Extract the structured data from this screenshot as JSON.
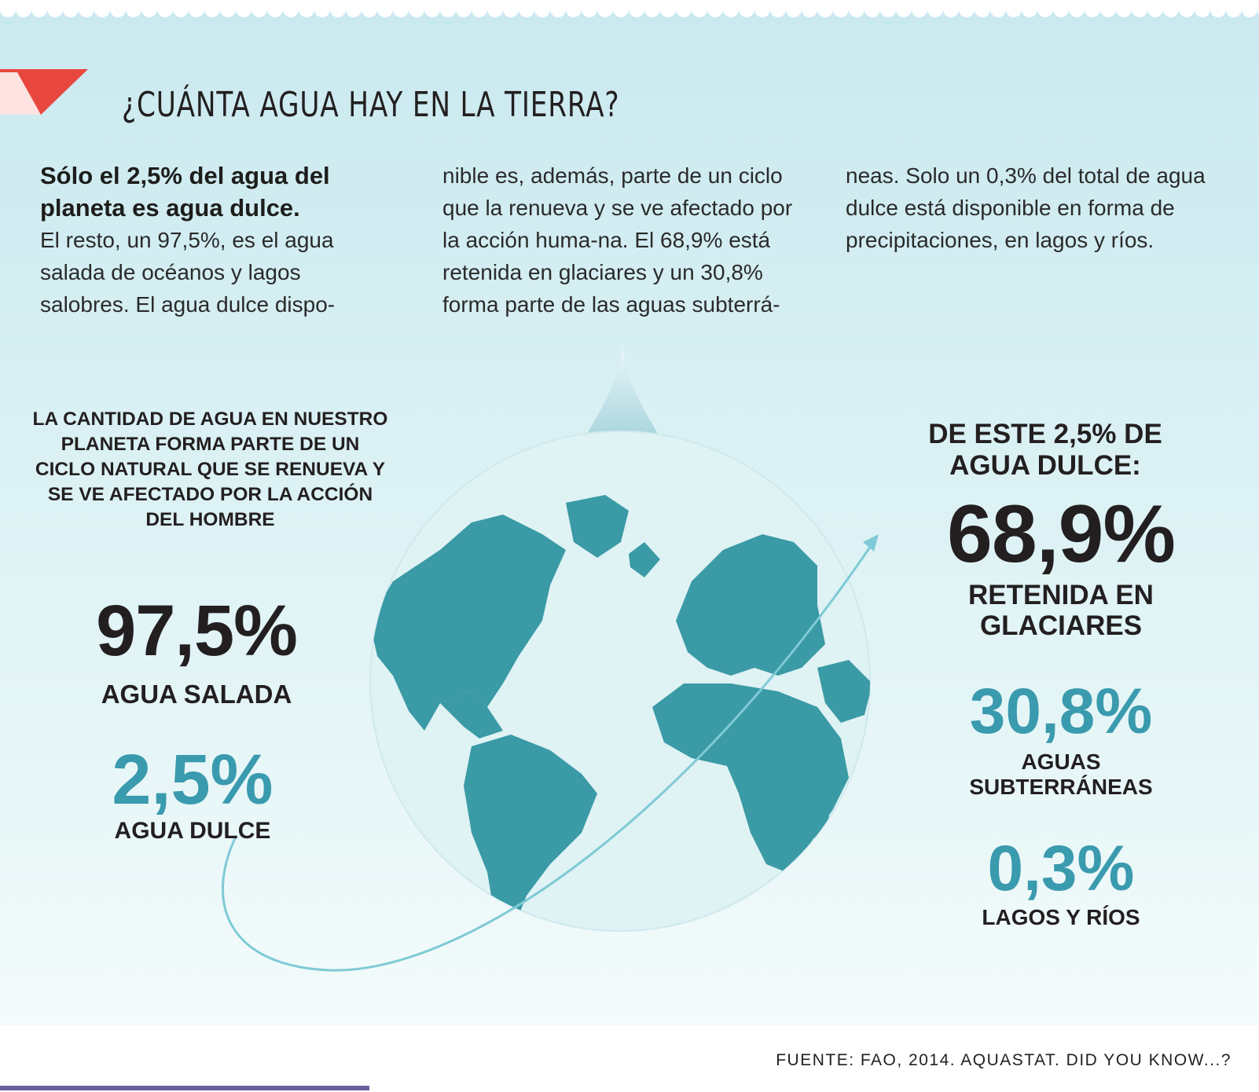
{
  "title": "¿CUÁNTA AGUA HAY EN LA TIERRA?",
  "intro": {
    "lead": "Sólo el 2,5% del agua del planeta es agua dulce.",
    "col1_text": "El resto, un 97,5%, es el agua salada de océanos y lagos salobres. El agua dulce dispo-",
    "col2_text": "nible es, además, parte de un ciclo que la renueva y se ve afectado por la acción huma-na. El 68,9% está retenida en glaciares y un 30,8% forma parte de las aguas subterrá-",
    "col3_text": "neas. Solo un 0,3% del total de agua dulce está disponible en forma de precipitaciones, en lagos y ríos."
  },
  "left": {
    "caption": "LA CANTIDAD DE AGUA EN NUESTRO PLANETA FORMA PARTE DE UN CICLO NATURAL QUE SE RENUEVA Y SE VE AFECTADO POR LA ACCIÓN DEL HOMBRE",
    "salt_value": "97,5%",
    "salt_label": "AGUA SALADA",
    "fresh_value": "2,5%",
    "fresh_label": "AGUA DULCE"
  },
  "drop": {
    "symbol": "?"
  },
  "right": {
    "heading": "DE ESTE 2,5% DE AGUA DULCE:",
    "glacier_value": "68,9%",
    "glacier_label": "RETENIDA EN GLACIARES",
    "ground_value": "30,8%",
    "ground_label": "AGUAS SUBTERRÁNEAS",
    "lakes_value": "0,3%",
    "lakes_label": "LAGOS Y RÍOS"
  },
  "source": "FUENTE: FAO, 2014. AQUASTAT. DID YOU KNOW...?",
  "colors": {
    "accent_red": "#e8473f",
    "teal_dark": "#3a9aa5",
    "teal_light": "#5fc0d0",
    "text_dark": "#231f20",
    "globe_ocean": "#dff2f4",
    "footer_rule": "#6b5fa0"
  }
}
